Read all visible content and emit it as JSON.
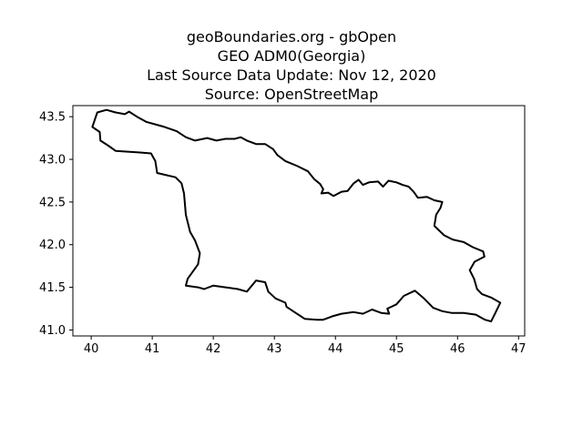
{
  "header": {
    "title_lines": [
      "geoBoundaries.org - gbOpen",
      "GEO ADM0(Georgia)",
      "Last Source Data Update: Nov 12, 2020",
      "Source: OpenStreetMap"
    ]
  },
  "map": {
    "x_ticks": [
      "40",
      "41",
      "42",
      "43",
      "44",
      "45",
      "46",
      "47"
    ],
    "y_ticks": [
      "41.0",
      "41.5",
      "42.0",
      "42.5",
      "43.0",
      "43.5"
    ],
    "xlim": [
      39.7,
      47.1
    ],
    "ylim": [
      40.93,
      43.63
    ],
    "outline_color": "#000000",
    "boundary": [
      [
        40.02,
        43.38
      ],
      [
        40.1,
        43.55
      ],
      [
        40.25,
        43.58
      ],
      [
        40.4,
        43.55
      ],
      [
        40.55,
        43.53
      ],
      [
        40.62,
        43.56
      ],
      [
        40.75,
        43.5
      ],
      [
        40.9,
        43.44
      ],
      [
        41.05,
        43.41
      ],
      [
        41.2,
        43.38
      ],
      [
        41.4,
        43.33
      ],
      [
        41.55,
        43.26
      ],
      [
        41.7,
        43.22
      ],
      [
        41.9,
        43.25
      ],
      [
        42.05,
        43.22
      ],
      [
        42.2,
        43.24
      ],
      [
        42.35,
        43.24
      ],
      [
        42.45,
        43.26
      ],
      [
        42.55,
        43.22
      ],
      [
        42.7,
        43.18
      ],
      [
        42.85,
        43.18
      ],
      [
        42.98,
        43.12
      ],
      [
        43.05,
        43.05
      ],
      [
        43.18,
        42.98
      ],
      [
        43.38,
        42.92
      ],
      [
        43.55,
        42.86
      ],
      [
        43.65,
        42.77
      ],
      [
        43.75,
        42.71
      ],
      [
        43.8,
        42.65
      ],
      [
        43.77,
        42.6
      ],
      [
        43.88,
        42.61
      ],
      [
        43.97,
        42.57
      ],
      [
        44.1,
        42.62
      ],
      [
        44.2,
        42.63
      ],
      [
        44.3,
        42.72
      ],
      [
        44.38,
        42.76
      ],
      [
        44.45,
        42.7
      ],
      [
        44.55,
        42.73
      ],
      [
        44.7,
        42.74
      ],
      [
        44.78,
        42.68
      ],
      [
        44.87,
        42.75
      ],
      [
        45.0,
        42.73
      ],
      [
        45.1,
        42.7
      ],
      [
        45.2,
        42.68
      ],
      [
        45.28,
        42.62
      ],
      [
        45.35,
        42.55
      ],
      [
        45.5,
        42.56
      ],
      [
        45.62,
        42.52
      ],
      [
        45.75,
        42.5
      ],
      [
        45.72,
        42.43
      ],
      [
        45.65,
        42.35
      ],
      [
        45.62,
        42.22
      ],
      [
        45.78,
        42.11
      ],
      [
        45.92,
        42.06
      ],
      [
        46.1,
        42.03
      ],
      [
        46.25,
        41.97
      ],
      [
        46.42,
        41.92
      ],
      [
        46.44,
        41.86
      ],
      [
        46.28,
        41.8
      ],
      [
        46.2,
        41.7
      ],
      [
        46.27,
        41.6
      ],
      [
        46.32,
        41.48
      ],
      [
        46.4,
        41.42
      ],
      [
        46.55,
        41.38
      ],
      [
        46.7,
        41.32
      ],
      [
        46.62,
        41.2
      ],
      [
        46.55,
        41.1
      ],
      [
        46.45,
        41.12
      ],
      [
        46.3,
        41.18
      ],
      [
        46.1,
        41.2
      ],
      [
        45.9,
        41.2
      ],
      [
        45.75,
        41.22
      ],
      [
        45.6,
        41.26
      ],
      [
        45.45,
        41.37
      ],
      [
        45.3,
        41.46
      ],
      [
        45.12,
        41.4
      ],
      [
        45.0,
        41.3
      ],
      [
        44.85,
        41.25
      ],
      [
        44.88,
        41.19
      ],
      [
        44.75,
        41.2
      ],
      [
        44.6,
        41.24
      ],
      [
        44.45,
        41.19
      ],
      [
        44.3,
        41.21
      ],
      [
        44.1,
        41.19
      ],
      [
        43.95,
        41.16
      ],
      [
        43.8,
        41.12
      ],
      [
        43.7,
        41.12
      ],
      [
        43.5,
        41.13
      ],
      [
        43.35,
        41.2
      ],
      [
        43.2,
        41.27
      ],
      [
        43.18,
        41.32
      ],
      [
        43.02,
        41.37
      ],
      [
        42.9,
        41.45
      ],
      [
        42.85,
        41.56
      ],
      [
        42.7,
        41.58
      ],
      [
        42.55,
        41.45
      ],
      [
        42.4,
        41.48
      ],
      [
        42.2,
        41.5
      ],
      [
        42.0,
        41.52
      ],
      [
        41.85,
        41.48
      ],
      [
        41.75,
        41.5
      ],
      [
        41.55,
        41.52
      ],
      [
        41.58,
        41.6
      ],
      [
        41.65,
        41.67
      ],
      [
        41.75,
        41.77
      ],
      [
        41.78,
        41.9
      ],
      [
        41.7,
        42.05
      ],
      [
        41.62,
        42.15
      ],
      [
        41.55,
        42.35
      ],
      [
        41.52,
        42.6
      ],
      [
        41.48,
        42.72
      ],
      [
        41.38,
        42.79
      ],
      [
        41.2,
        42.82
      ],
      [
        41.08,
        42.84
      ],
      [
        41.05,
        42.98
      ],
      [
        40.98,
        43.07
      ],
      [
        40.8,
        43.08
      ],
      [
        40.6,
        43.09
      ],
      [
        40.4,
        43.1
      ],
      [
        40.28,
        43.16
      ],
      [
        40.15,
        43.22
      ],
      [
        40.14,
        43.32
      ],
      [
        40.02,
        43.38
      ]
    ]
  }
}
